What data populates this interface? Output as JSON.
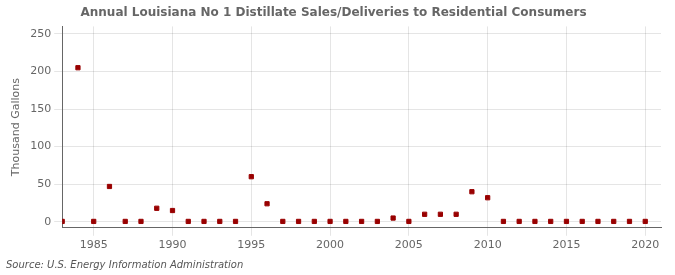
{
  "chart_data": {
    "type": "scatter",
    "title": "Annual Louisiana No 1 Distillate Sales/Deliveries to Residential Consumers",
    "ylabel": "Thousand Gallons",
    "annotations": [
      "Source: U.S. Energy Information Administration"
    ],
    "x": [
      1983,
      1984,
      1985,
      1986,
      1987,
      1988,
      1989,
      1990,
      1991,
      1992,
      1993,
      1994,
      1995,
      1996,
      1997,
      1998,
      1999,
      2000,
      2001,
      2002,
      2003,
      2004,
      2005,
      2006,
      2007,
      2008,
      2009,
      2010,
      2011,
      2012,
      2013,
      2014,
      2015,
      2016,
      2017,
      2018,
      2019,
      2020
    ],
    "values": [
      0.5,
      205,
      0.5,
      47,
      0.5,
      0.5,
      18,
      15,
      0.5,
      0.5,
      0.5,
      0.5,
      60,
      24,
      0.5,
      0.5,
      0.5,
      0.5,
      0.5,
      0.5,
      0.5,
      5,
      0.5,
      10,
      10,
      10,
      40,
      32,
      0.5,
      0.5,
      0.5,
      0.5,
      0.5,
      0.5,
      0.5,
      0.5,
      0.5,
      0.5
    ],
    "color": "#990000",
    "marker": "square",
    "xlim": [
      1983,
      2021
    ],
    "xticks": [
      1985,
      1990,
      1995,
      2000,
      2005,
      2010,
      2015,
      2020
    ],
    "ylim": [
      -8,
      260
    ],
    "yticks": [
      0,
      50,
      100,
      150,
      200,
      250
    ],
    "grid": true
  }
}
